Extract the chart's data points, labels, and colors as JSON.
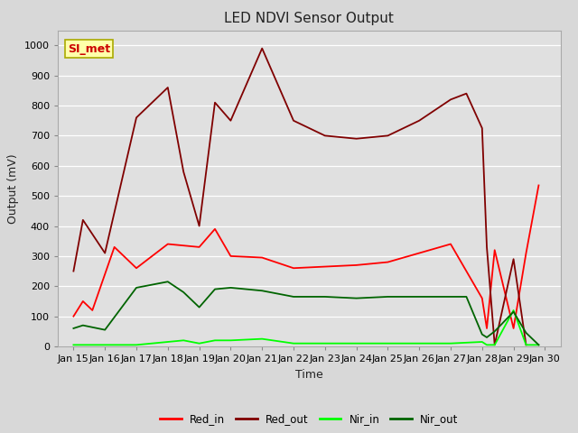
{
  "title": "LED NDVI Sensor Output",
  "xlabel": "Time",
  "ylabel": "Output (mV)",
  "ylim": [
    0,
    1050
  ],
  "xlim": [
    14.5,
    30.5
  ],
  "background_color": "#e0e0e0",
  "grid_color": "#ffffff",
  "x_ticks": [
    15,
    16,
    17,
    18,
    19,
    20,
    21,
    22,
    23,
    24,
    25,
    26,
    27,
    28,
    29,
    30
  ],
  "x_tick_labels": [
    "Jan 15",
    "Jan 16",
    "Jan 17",
    "Jan 18",
    "Jan 19",
    "Jan 20",
    "Jan 21",
    "Jan 22",
    "Jan 23",
    "Jan 24",
    "Jan 25",
    "Jan 26",
    "Jan 27",
    "Jan 28",
    "Jan 29",
    "Jan 30"
  ],
  "series": {
    "Red_in": {
      "color": "#ff0000",
      "x": [
        15,
        15.3,
        15.6,
        16.3,
        17.0,
        18.0,
        19.0,
        19.5,
        20.0,
        21.0,
        22.0,
        23.0,
        24.0,
        25.0,
        26.0,
        27.0,
        28.0,
        28.15,
        28.4,
        29.0,
        29.4,
        29.8
      ],
      "y": [
        100,
        150,
        120,
        330,
        260,
        340,
        330,
        390,
        300,
        295,
        260,
        265,
        270,
        280,
        310,
        340,
        160,
        60,
        320,
        60,
        310,
        535
      ]
    },
    "Red_out": {
      "color": "#800000",
      "x": [
        15,
        15.3,
        16.0,
        17.0,
        18.0,
        18.5,
        19.0,
        19.5,
        20.0,
        21.0,
        22.0,
        23.0,
        24.0,
        25.0,
        26.0,
        27.0,
        27.5,
        28.0,
        28.15,
        28.4,
        29.0,
        29.4
      ],
      "y": [
        250,
        420,
        310,
        760,
        860,
        580,
        400,
        810,
        750,
        990,
        750,
        700,
        690,
        700,
        750,
        820,
        840,
        725,
        330,
        5,
        290,
        5
      ]
    },
    "Nir_in": {
      "color": "#00ff00",
      "x": [
        15,
        15.3,
        16.0,
        17.0,
        18.0,
        18.5,
        19.0,
        19.5,
        20.0,
        21.0,
        22.0,
        23.0,
        24.0,
        25.0,
        26.0,
        27.0,
        28.0,
        28.15,
        28.4,
        29.0,
        29.4,
        29.8
      ],
      "y": [
        5,
        5,
        5,
        5,
        15,
        20,
        10,
        20,
        20,
        25,
        10,
        10,
        10,
        10,
        10,
        10,
        15,
        5,
        5,
        120,
        5,
        5
      ]
    },
    "Nir_out": {
      "color": "#006400",
      "x": [
        15,
        15.3,
        16.0,
        17.0,
        18.0,
        18.5,
        19.0,
        19.5,
        20.0,
        21.0,
        22.0,
        23.0,
        24.0,
        25.0,
        26.0,
        27.0,
        27.5,
        28.0,
        28.15,
        28.4,
        29.0,
        29.4,
        29.8
      ],
      "y": [
        60,
        70,
        55,
        195,
        215,
        180,
        130,
        190,
        195,
        185,
        165,
        165,
        160,
        165,
        165,
        165,
        165,
        40,
        30,
        50,
        115,
        45,
        5
      ]
    }
  },
  "legend_entries": [
    "Red_in",
    "Red_out",
    "Nir_in",
    "Nir_out"
  ],
  "legend_colors": [
    "#ff0000",
    "#800000",
    "#00ff00",
    "#006400"
  ],
  "annotation_text": "SI_met",
  "annotation_fontsize": 9,
  "title_fontsize": 11,
  "ylabel_fontsize": 9,
  "xlabel_fontsize": 9,
  "tick_fontsize": 8,
  "legend_fontsize": 8.5
}
